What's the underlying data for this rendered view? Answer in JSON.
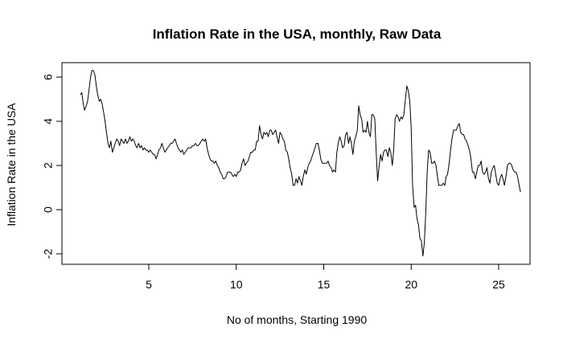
{
  "chart_data": {
    "type": "line",
    "title": "Inflation Rate in the USA, monthly, Raw Data",
    "xlabel": "No of months, Starting 1990",
    "ylabel": "Inflation Rate in the USA",
    "xlim": [
      0.5,
      27
    ],
    "ylim": [
      -2.5,
      6.6
    ],
    "x_ticks": [
      5,
      10,
      15,
      20,
      25
    ],
    "y_ticks": [
      -2,
      0,
      2,
      4,
      6
    ],
    "x_tick_labels": [
      "5",
      "10",
      "15",
      "20",
      "25"
    ],
    "y_tick_labels": [
      "-2",
      "0",
      "2",
      "4",
      "6"
    ],
    "grid": false,
    "legend": "none",
    "line_color": "#000000",
    "series": [
      {
        "points": [
          [
            1.08,
            5.2
          ],
          [
            1.17,
            5.3
          ],
          [
            1.25,
            4.8
          ],
          [
            1.33,
            4.5
          ],
          [
            1.42,
            4.7
          ],
          [
            1.5,
            4.9
          ],
          [
            1.58,
            5.4
          ],
          [
            1.67,
            6.0
          ],
          [
            1.75,
            6.3
          ],
          [
            1.83,
            6.3
          ],
          [
            1.92,
            6.1
          ],
          [
            2.0,
            5.6
          ],
          [
            2.08,
            5.2
          ],
          [
            2.17,
            4.9
          ],
          [
            2.25,
            5.0
          ],
          [
            2.33,
            4.8
          ],
          [
            2.42,
            4.4
          ],
          [
            2.5,
            4.0
          ],
          [
            2.58,
            3.5
          ],
          [
            2.67,
            3.0
          ],
          [
            2.75,
            2.8
          ],
          [
            2.83,
            3.1
          ],
          [
            2.92,
            2.6
          ],
          [
            3.0,
            2.8
          ],
          [
            3.08,
            3.0
          ],
          [
            3.17,
            3.2
          ],
          [
            3.25,
            3.1
          ],
          [
            3.33,
            2.9
          ],
          [
            3.42,
            3.2
          ],
          [
            3.5,
            3.1
          ],
          [
            3.58,
            3.0
          ],
          [
            3.67,
            3.2
          ],
          [
            3.75,
            3.0
          ],
          [
            3.83,
            3.1
          ],
          [
            3.92,
            3.3
          ],
          [
            4.0,
            3.1
          ],
          [
            4.08,
            3.2
          ],
          [
            4.17,
            3.1
          ],
          [
            4.25,
            2.9
          ],
          [
            4.33,
            2.8
          ],
          [
            4.42,
            3.0
          ],
          [
            4.5,
            2.8
          ],
          [
            4.58,
            2.9
          ],
          [
            4.67,
            2.7
          ],
          [
            4.75,
            2.8
          ],
          [
            4.83,
            2.7
          ],
          [
            4.92,
            2.7
          ],
          [
            5.0,
            2.6
          ],
          [
            5.08,
            2.7
          ],
          [
            5.17,
            2.6
          ],
          [
            5.25,
            2.5
          ],
          [
            5.33,
            2.5
          ],
          [
            5.42,
            2.3
          ],
          [
            5.5,
            2.5
          ],
          [
            5.58,
            2.7
          ],
          [
            5.67,
            2.8
          ],
          [
            5.75,
            3.0
          ],
          [
            5.83,
            2.8
          ],
          [
            5.92,
            2.6
          ],
          [
            6.0,
            2.7
          ],
          [
            6.08,
            2.8
          ],
          [
            6.17,
            2.9
          ],
          [
            6.25,
            3.0
          ],
          [
            6.33,
            3.0
          ],
          [
            6.42,
            3.1
          ],
          [
            6.5,
            3.2
          ],
          [
            6.58,
            3.0
          ],
          [
            6.67,
            2.8
          ],
          [
            6.75,
            2.7
          ],
          [
            6.83,
            2.6
          ],
          [
            6.92,
            2.7
          ],
          [
            7.0,
            2.5
          ],
          [
            7.08,
            2.6
          ],
          [
            7.17,
            2.7
          ],
          [
            7.25,
            2.8
          ],
          [
            7.33,
            2.8
          ],
          [
            7.42,
            2.8
          ],
          [
            7.5,
            2.9
          ],
          [
            7.58,
            2.9
          ],
          [
            7.67,
            3.0
          ],
          [
            7.75,
            2.9
          ],
          [
            7.83,
            2.9
          ],
          [
            7.92,
            3.0
          ],
          [
            8.0,
            3.1
          ],
          [
            8.08,
            3.2
          ],
          [
            8.17,
            3.1
          ],
          [
            8.25,
            3.2
          ],
          [
            8.33,
            2.8
          ],
          [
            8.42,
            2.5
          ],
          [
            8.5,
            2.3
          ],
          [
            8.58,
            2.2
          ],
          [
            8.67,
            2.2
          ],
          [
            8.75,
            2.1
          ],
          [
            8.83,
            2.2
          ],
          [
            8.92,
            2.0
          ],
          [
            9.0,
            1.9
          ],
          [
            9.08,
            1.7
          ],
          [
            9.17,
            1.6
          ],
          [
            9.25,
            1.4
          ],
          [
            9.33,
            1.4
          ],
          [
            9.42,
            1.5
          ],
          [
            9.5,
            1.7
          ],
          [
            9.58,
            1.7
          ],
          [
            9.67,
            1.7
          ],
          [
            9.75,
            1.6
          ],
          [
            9.83,
            1.5
          ],
          [
            9.92,
            1.6
          ],
          [
            10.0,
            1.5
          ],
          [
            10.08,
            1.7
          ],
          [
            10.17,
            1.7
          ],
          [
            10.25,
            1.8
          ],
          [
            10.33,
            2.1
          ],
          [
            10.42,
            2.3
          ],
          [
            10.5,
            2.0
          ],
          [
            10.58,
            2.1
          ],
          [
            10.67,
            2.2
          ],
          [
            10.75,
            2.4
          ],
          [
            10.83,
            2.6
          ],
          [
            10.92,
            2.6
          ],
          [
            11.0,
            2.7
          ],
          [
            11.08,
            2.7
          ],
          [
            11.17,
            3.1
          ],
          [
            11.25,
            3.1
          ],
          [
            11.33,
            3.8
          ],
          [
            11.42,
            3.4
          ],
          [
            11.5,
            3.2
          ],
          [
            11.58,
            3.5
          ],
          [
            11.67,
            3.4
          ],
          [
            11.75,
            3.5
          ],
          [
            11.83,
            3.3
          ],
          [
            11.92,
            3.6
          ],
          [
            12.0,
            3.6
          ],
          [
            12.08,
            3.4
          ],
          [
            12.17,
            3.5
          ],
          [
            12.25,
            3.6
          ],
          [
            12.33,
            3.3
          ],
          [
            12.42,
            3.0
          ],
          [
            12.5,
            3.5
          ],
          [
            12.58,
            3.4
          ],
          [
            12.67,
            3.2
          ],
          [
            12.75,
            3.1
          ],
          [
            12.83,
            2.7
          ],
          [
            12.92,
            2.6
          ],
          [
            13.0,
            2.3
          ],
          [
            13.08,
            1.9
          ],
          [
            13.17,
            1.6
          ],
          [
            13.25,
            1.1
          ],
          [
            13.33,
            1.1
          ],
          [
            13.42,
            1.4
          ],
          [
            13.5,
            1.2
          ],
          [
            13.58,
            1.5
          ],
          [
            13.67,
            1.3
          ],
          [
            13.75,
            1.1
          ],
          [
            13.83,
            1.5
          ],
          [
            13.92,
            1.8
          ],
          [
            14.0,
            1.6
          ],
          [
            14.08,
            1.9
          ],
          [
            14.17,
            2.1
          ],
          [
            14.25,
            2.2
          ],
          [
            14.33,
            2.4
          ],
          [
            14.42,
            2.6
          ],
          [
            14.5,
            2.8
          ],
          [
            14.58,
            3.0
          ],
          [
            14.67,
            3.0
          ],
          [
            14.75,
            2.7
          ],
          [
            14.83,
            2.3
          ],
          [
            14.92,
            2.1
          ],
          [
            15.0,
            2.1
          ],
          [
            15.08,
            2.1
          ],
          [
            15.17,
            2.1
          ],
          [
            15.25,
            2.2
          ],
          [
            15.33,
            2.0
          ],
          [
            15.42,
            1.9
          ],
          [
            15.5,
            1.7
          ],
          [
            15.58,
            1.8
          ],
          [
            15.67,
            1.7
          ],
          [
            15.75,
            2.6
          ],
          [
            15.83,
            3.0
          ],
          [
            15.92,
            3.3
          ],
          [
            16.0,
            3.1
          ],
          [
            16.08,
            2.8
          ],
          [
            16.17,
            2.9
          ],
          [
            16.25,
            3.4
          ],
          [
            16.33,
            3.5
          ],
          [
            16.42,
            3.0
          ],
          [
            16.5,
            3.3
          ],
          [
            16.58,
            3.0
          ],
          [
            16.67,
            2.5
          ],
          [
            16.75,
            3.1
          ],
          [
            16.83,
            3.3
          ],
          [
            16.92,
            3.6
          ],
          [
            17.0,
            4.7
          ],
          [
            17.08,
            4.3
          ],
          [
            17.17,
            4.1
          ],
          [
            17.25,
            3.5
          ],
          [
            17.33,
            3.6
          ],
          [
            17.42,
            3.5
          ],
          [
            17.5,
            4.0
          ],
          [
            17.58,
            3.5
          ],
          [
            17.67,
            3.3
          ],
          [
            17.75,
            4.3
          ],
          [
            17.83,
            4.3
          ],
          [
            17.92,
            4.1
          ],
          [
            18.0,
            2.6
          ],
          [
            18.08,
            1.3
          ],
          [
            18.17,
            2.0
          ],
          [
            18.25,
            2.5
          ],
          [
            18.33,
            2.2
          ],
          [
            18.42,
            2.6
          ],
          [
            18.5,
            2.7
          ],
          [
            18.58,
            2.7
          ],
          [
            18.67,
            2.4
          ],
          [
            18.75,
            2.8
          ],
          [
            18.83,
            2.6
          ],
          [
            18.92,
            2.0
          ],
          [
            19.0,
            2.7
          ],
          [
            19.08,
            4.1
          ],
          [
            19.17,
            4.3
          ],
          [
            19.25,
            4.2
          ],
          [
            19.33,
            4.0
          ],
          [
            19.42,
            4.2
          ],
          [
            19.5,
            4.1
          ],
          [
            19.58,
            4.3
          ],
          [
            19.67,
            5.0
          ],
          [
            19.75,
            5.6
          ],
          [
            19.83,
            5.4
          ],
          [
            19.92,
            4.9
          ],
          [
            20.0,
            3.7
          ],
          [
            20.08,
            1.1
          ],
          [
            20.17,
            0.1
          ],
          [
            20.25,
            0.2
          ],
          [
            20.33,
            -0.4
          ],
          [
            20.42,
            -0.7
          ],
          [
            20.5,
            -1.3
          ],
          [
            20.58,
            -1.4
          ],
          [
            20.67,
            -2.1
          ],
          [
            20.75,
            -1.5
          ],
          [
            20.83,
            -0.2
          ],
          [
            20.92,
            1.8
          ],
          [
            21.0,
            2.7
          ],
          [
            21.08,
            2.6
          ],
          [
            21.17,
            2.1
          ],
          [
            21.25,
            2.1
          ],
          [
            21.33,
            2.2
          ],
          [
            21.42,
            2.0
          ],
          [
            21.5,
            1.5
          ],
          [
            21.58,
            1.1
          ],
          [
            21.67,
            1.1
          ],
          [
            21.75,
            1.1
          ],
          [
            21.83,
            1.2
          ],
          [
            21.92,
            1.1
          ],
          [
            22.0,
            1.5
          ],
          [
            22.08,
            1.6
          ],
          [
            22.17,
            2.1
          ],
          [
            22.25,
            2.7
          ],
          [
            22.33,
            3.2
          ],
          [
            22.42,
            3.6
          ],
          [
            22.5,
            3.6
          ],
          [
            22.58,
            3.6
          ],
          [
            22.67,
            3.8
          ],
          [
            22.75,
            3.9
          ],
          [
            22.83,
            3.5
          ],
          [
            22.92,
            3.4
          ],
          [
            23.0,
            3.4
          ],
          [
            23.08,
            3.2
          ],
          [
            23.17,
            3.1
          ],
          [
            23.25,
            2.9
          ],
          [
            23.33,
            2.7
          ],
          [
            23.42,
            2.3
          ],
          [
            23.5,
            1.7
          ],
          [
            23.58,
            1.7
          ],
          [
            23.67,
            1.4
          ],
          [
            23.75,
            1.7
          ],
          [
            23.83,
            2.0
          ],
          [
            23.92,
            2.0
          ],
          [
            24.0,
            2.2
          ],
          [
            24.08,
            1.7
          ],
          [
            24.17,
            1.6
          ],
          [
            24.25,
            1.7
          ],
          [
            24.33,
            1.9
          ],
          [
            24.42,
            1.4
          ],
          [
            24.5,
            1.2
          ],
          [
            24.58,
            1.7
          ],
          [
            24.67,
            1.9
          ],
          [
            24.75,
            2.0
          ],
          [
            24.83,
            1.6
          ],
          [
            24.92,
            1.2
          ],
          [
            25.0,
            1.1
          ],
          [
            25.08,
            1.4
          ],
          [
            25.17,
            1.6
          ],
          [
            25.25,
            1.4
          ],
          [
            25.33,
            1.1
          ],
          [
            25.42,
            1.5
          ],
          [
            25.5,
            2.0
          ],
          [
            25.58,
            2.1
          ],
          [
            25.67,
            2.1
          ],
          [
            25.75,
            2.0
          ],
          [
            25.83,
            1.8
          ],
          [
            25.92,
            1.7
          ],
          [
            26.0,
            1.7
          ],
          [
            26.08,
            1.5
          ],
          [
            26.17,
            1.1
          ],
          [
            26.25,
            0.8
          ]
        ]
      }
    ]
  }
}
